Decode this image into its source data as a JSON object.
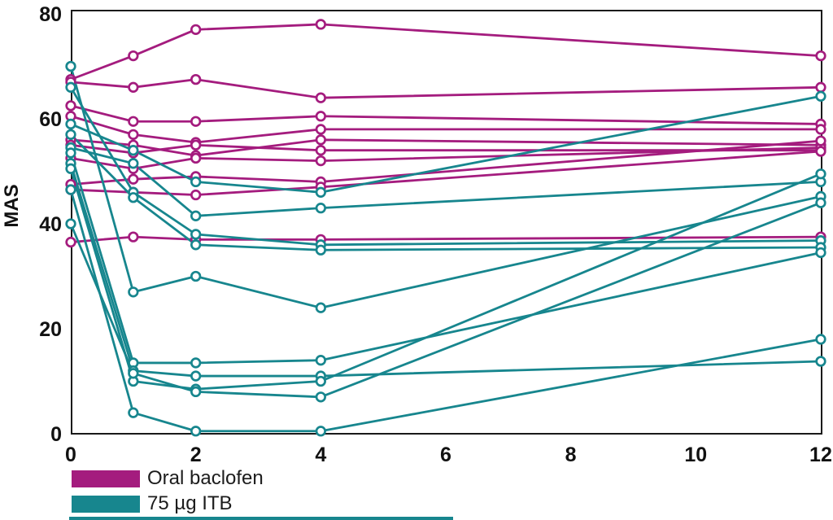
{
  "figure": {
    "ylabel": "MAS",
    "frame_color": "#1a1a1a",
    "background": "#ffffff"
  },
  "legend": {
    "items": [
      {
        "label": "Oral baclofen",
        "color": "#A41C7E"
      },
      {
        "label": "75 µg ITB",
        "color": "#17868E"
      }
    ]
  },
  "decor": {
    "bottom_rule_color": "#17868E"
  },
  "chart_data": {
    "type": "line",
    "title": "",
    "xlabel": "",
    "ylabel": "MAS",
    "xlim": [
      0,
      12
    ],
    "ylim": [
      0,
      80
    ],
    "x_ticks": [
      0,
      2,
      4,
      6,
      8,
      10,
      12
    ],
    "y_ticks": [
      0,
      20,
      40,
      60,
      80
    ],
    "grid": false,
    "marker": "open-circle",
    "legend_position": "bottom-left",
    "x_values": [
      0,
      1,
      2,
      4,
      12
    ],
    "groups": [
      {
        "name": "Oral baclofen",
        "color": "#A41C7E",
        "series": [
          {
            "values": [
              67.5,
              72,
              77,
              78,
              72
            ]
          },
          {
            "values": [
              67,
              66,
              67.5,
              64,
              66
            ]
          },
          {
            "values": [
              62.5,
              59.5,
              59.5,
              60.5,
              59
            ]
          },
          {
            "values": [
              60.5,
              57,
              55.5,
              58,
              58
            ]
          },
          {
            "values": [
              56,
              55,
              53,
              56,
              55
            ]
          },
          {
            "values": [
              55,
              53.5,
              55,
              54,
              54
            ]
          },
          {
            "values": [
              52.5,
              50.5,
              52.5,
              52,
              54.5
            ]
          },
          {
            "values": [
              47.5,
              48.5,
              49,
              48,
              55.8
            ]
          },
          {
            "values": [
              46.5,
              46,
              45.5,
              47,
              53.8
            ]
          },
          {
            "values": [
              36.5,
              37.5,
              37,
              37,
              37.5
            ]
          }
        ]
      },
      {
        "name": "75 µg ITB",
        "color": "#17868E",
        "series": [
          {
            "values": [
              70,
              27,
              30,
              24,
              45.2
            ]
          },
          {
            "values": [
              66,
              46,
              38,
              36,
              36.8
            ]
          },
          {
            "values": [
              59,
              54,
              48,
              46,
              64.3
            ]
          },
          {
            "values": [
              57,
              45,
              36,
              35,
              35.5
            ]
          },
          {
            "values": [
              54.5,
              51.5,
              41.5,
              43,
              48
            ]
          },
          {
            "values": [
              53.5,
              13.5,
              13.5,
              14,
              34.5
            ]
          },
          {
            "values": [
              51.5,
              12,
              11,
              11,
              13.8
            ]
          },
          {
            "values": [
              50.5,
              10,
              8.5,
              10,
              49.5
            ]
          },
          {
            "values": [
              46.5,
              4,
              0.5,
              0.5,
              18
            ]
          },
          {
            "values": [
              40,
              11.5,
              8,
              7,
              44
            ]
          }
        ]
      }
    ]
  }
}
